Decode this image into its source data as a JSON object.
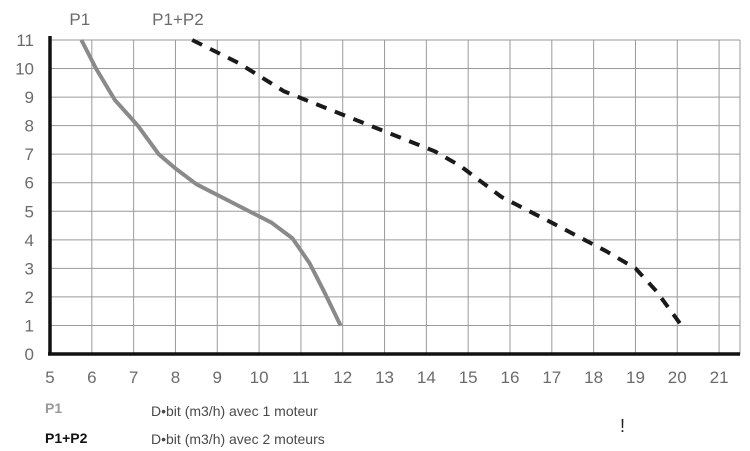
{
  "chart_data": {
    "type": "line",
    "xlim": [
      5,
      21.5
    ],
    "ylim": [
      0,
      11
    ],
    "xticks": [
      5,
      6,
      7,
      8,
      9,
      10,
      11,
      12,
      13,
      14,
      15,
      16,
      17,
      18,
      19,
      20,
      21
    ],
    "yticks": [
      0,
      1,
      2,
      3,
      4,
      5,
      6,
      7,
      8,
      9,
      10,
      11
    ],
    "grid": true,
    "series": [
      {
        "name": "P1",
        "color": "#8a8a8a",
        "style": "solid",
        "x": [
          5.75,
          6.1,
          6.55,
          7.1,
          7.6,
          8.0,
          8.5,
          9.5,
          10.3,
          10.8,
          11.2,
          11.55,
          11.95
        ],
        "y": [
          11,
          10.0,
          8.9,
          8.0,
          7.0,
          6.5,
          5.95,
          5.2,
          4.6,
          4.05,
          3.2,
          2.2,
          1.0
        ]
      },
      {
        "name": "P1+P2",
        "color": "#1a1a1a",
        "style": "dashed",
        "x": [
          8.4,
          9.5,
          10.6,
          11.8,
          13.0,
          14.2,
          14.8,
          15.8,
          17.0,
          18.3,
          19.0,
          19.5,
          20.1
        ],
        "y": [
          11,
          10.2,
          9.2,
          8.5,
          7.8,
          7.1,
          6.6,
          5.5,
          4.6,
          3.6,
          3.0,
          2.2,
          1.0
        ]
      }
    ],
    "legend": [
      {
        "key": "P1",
        "text": "D•bit (m3/h) avec 1 moteur",
        "color": "#999999"
      },
      {
        "key": "P1+P2",
        "text": "D•bit (m3/h) avec 2 moteurs",
        "color": "#111111"
      }
    ]
  },
  "stray_mark": "!"
}
